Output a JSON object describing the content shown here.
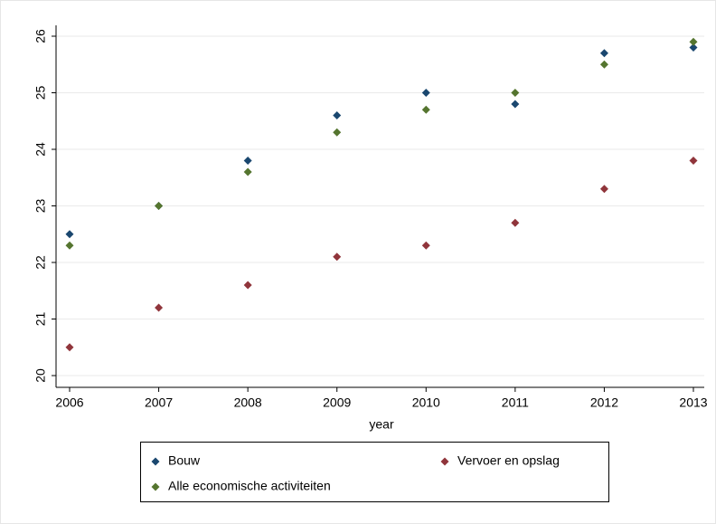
{
  "chart_data": {
    "type": "scatter",
    "x": [
      2006,
      2007,
      2008,
      2009,
      2010,
      2011,
      2012,
      2013
    ],
    "x_label": "year",
    "series": [
      {
        "name": "Bouw",
        "color": "#1a476f",
        "values": [
          22.5,
          23.0,
          23.8,
          24.6,
          25.0,
          24.8,
          25.7,
          25.8
        ]
      },
      {
        "name": "Vervoer en opslag",
        "color": "#90353b",
        "values": [
          20.5,
          21.2,
          21.6,
          22.1,
          22.3,
          22.7,
          23.3,
          23.8
        ]
      },
      {
        "name": "Alle economische activiteiten",
        "color": "#55752f",
        "values": [
          22.3,
          23.0,
          23.6,
          24.3,
          24.7,
          25.0,
          25.5,
          25.9
        ]
      }
    ],
    "xlim": [
      2006,
      2013
    ],
    "xticks": [
      2006,
      2007,
      2008,
      2009,
      2010,
      2011,
      2012,
      2013
    ],
    "ylim": [
      20,
      26
    ],
    "yticks": [
      20,
      21,
      22,
      23,
      24,
      25,
      26
    ],
    "grid": true,
    "legend": "bottom"
  }
}
